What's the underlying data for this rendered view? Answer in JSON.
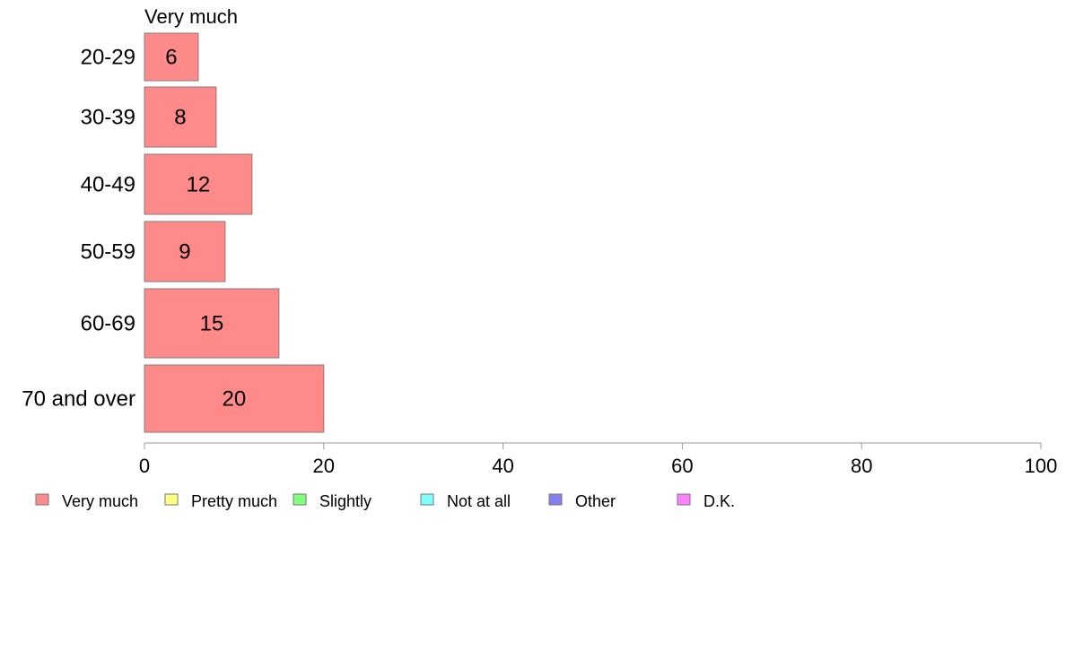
{
  "chart_data": {
    "type": "bar",
    "orientation": "horizontal",
    "title": "Very much",
    "categories": [
      "20-29",
      "30-39",
      "40-49",
      "50-59",
      "60-69",
      "70 and over"
    ],
    "series": [
      {
        "name": "Very much",
        "color": "#ff8a8a",
        "values": [
          6,
          8,
          12,
          9,
          15,
          20
        ]
      }
    ],
    "xlim": [
      0,
      100
    ],
    "xticks": [
      0,
      20,
      40,
      60,
      80,
      100
    ],
    "grid": false,
    "legend": {
      "position": "bottom-left",
      "items": [
        {
          "label": "Very much",
          "color": "#ff8a8a"
        },
        {
          "label": "Pretty much",
          "color": "#ffff80"
        },
        {
          "label": "Slightly",
          "color": "#80ff80"
        },
        {
          "label": "Not at all",
          "color": "#80ffff"
        },
        {
          "label": "Other",
          "color": "#8080f0"
        },
        {
          "label": "D.K.",
          "color": "#ff80ff"
        }
      ]
    }
  }
}
